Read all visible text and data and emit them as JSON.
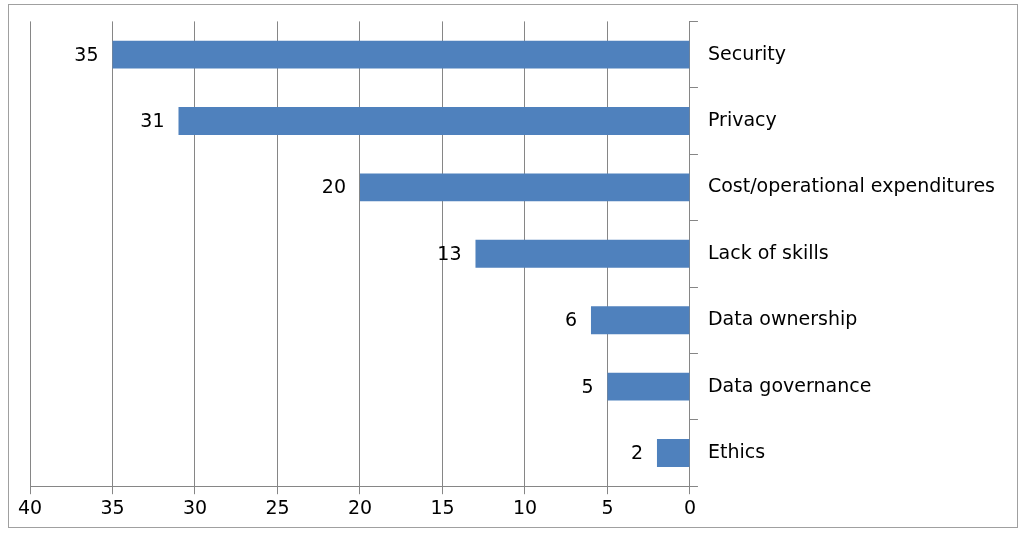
{
  "chart_data": {
    "type": "bar",
    "orientation": "horizontal",
    "categories": [
      "Security",
      "Privacy",
      "Cost/operational expenditures",
      "Lack of skills",
      "Data ownership",
      "Data governance",
      "Ethics"
    ],
    "values": [
      35,
      31,
      20,
      13,
      6,
      5,
      2
    ],
    "color": "#4f81bd",
    "xlim": [
      40,
      0
    ],
    "xticks": [
      40,
      35,
      30,
      25,
      20,
      15,
      10,
      5,
      0
    ],
    "grid": "x",
    "legend": false,
    "data_labels": true
  }
}
